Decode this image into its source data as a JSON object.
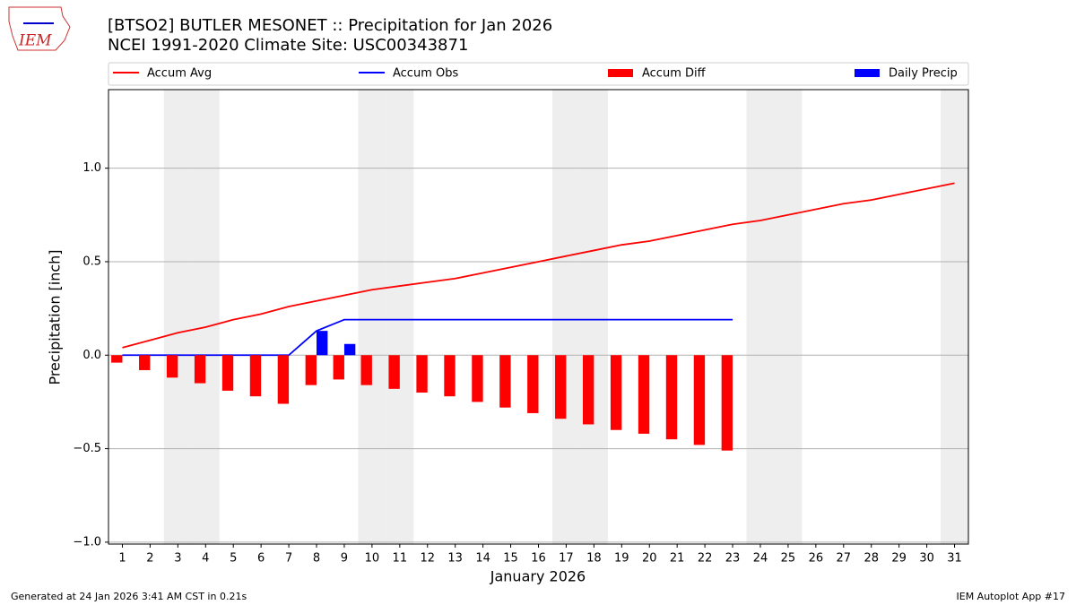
{
  "chart_data": {
    "type": "combo",
    "title": "[BTSO2] BUTLER MESONET :: Precipitation for Jan 2026",
    "subtitle": "NCEI 1991-2020 Climate Site: USC00343871",
    "logo": "IEM",
    "x_label": "January 2026",
    "y_label": "Precipitation [inch]",
    "x": [
      1,
      2,
      3,
      4,
      5,
      6,
      7,
      8,
      9,
      10,
      11,
      12,
      13,
      14,
      15,
      16,
      17,
      18,
      19,
      20,
      21,
      22,
      23,
      24,
      25,
      26,
      27,
      28,
      29,
      30,
      31
    ],
    "xlim": [
      0.5,
      31.5
    ],
    "xticks": [
      1,
      2,
      3,
      4,
      5,
      6,
      7,
      8,
      9,
      10,
      11,
      12,
      13,
      14,
      15,
      16,
      17,
      18,
      19,
      20,
      21,
      22,
      23,
      24,
      25,
      26,
      27,
      28,
      29,
      30,
      31
    ],
    "ylim": [
      -1.01,
      1.42
    ],
    "yticks": [
      {
        "value": -1,
        "label": "−1.0"
      },
      {
        "value": -0.5,
        "label": "−0.5"
      },
      {
        "value": 0,
        "label": "0.0"
      },
      0.5,
      {
        "value": 1,
        "label": "1.0"
      }
    ],
    "grid": true,
    "shaded_days": [
      3,
      4,
      10,
      11,
      17,
      18,
      24,
      25,
      31
    ],
    "series": [
      {
        "name": "Accum Avg",
        "type": "line",
        "color": "#ff0000",
        "values": [
          0.04,
          0.08,
          0.12,
          0.15,
          0.19,
          0.22,
          0.26,
          0.29,
          0.32,
          0.35,
          0.37,
          0.39,
          0.41,
          0.44,
          0.47,
          0.5,
          0.53,
          0.56,
          0.59,
          0.61,
          0.64,
          0.67,
          0.7,
          0.72,
          0.75,
          0.78,
          0.81,
          0.83,
          0.86,
          0.89,
          0.92
        ]
      },
      {
        "name": "Accum Obs",
        "type": "line",
        "color": "#0000ff",
        "values": [
          0,
          0,
          0,
          0,
          0,
          0,
          0,
          0.13,
          0.19,
          0.19,
          0.19,
          0.19,
          0.19,
          0.19,
          0.19,
          0.19,
          0.19,
          0.19,
          0.19,
          0.19,
          0.19,
          0.19,
          0.19,
          null,
          null,
          null,
          null,
          null,
          null,
          null,
          null
        ]
      },
      {
        "name": "Accum Diff",
        "type": "bar",
        "color": "#ff0000",
        "values": [
          -0.04,
          -0.08,
          -0.12,
          -0.15,
          -0.19,
          -0.22,
          -0.26,
          -0.16,
          -0.13,
          -0.16,
          -0.18,
          -0.2,
          -0.22,
          -0.25,
          -0.28,
          -0.31,
          -0.34,
          -0.37,
          -0.4,
          -0.42,
          -0.45,
          -0.48,
          -0.51,
          null,
          null,
          null,
          null,
          null,
          null,
          null,
          null
        ]
      },
      {
        "name": "Daily Precip",
        "type": "bar",
        "color": "#0000ff",
        "values": [
          0,
          0,
          0,
          0,
          0,
          0,
          0,
          0.13,
          0.06,
          0,
          0,
          0,
          0,
          0,
          0,
          0,
          0,
          0,
          0,
          0,
          0,
          0,
          0,
          null,
          null,
          null,
          null,
          null,
          null,
          null,
          null
        ]
      }
    ],
    "footer_left": "Generated at 24 Jan 2026 3:41 AM CST in 0.21s",
    "footer_right": "IEM Autoplot App #17"
  }
}
